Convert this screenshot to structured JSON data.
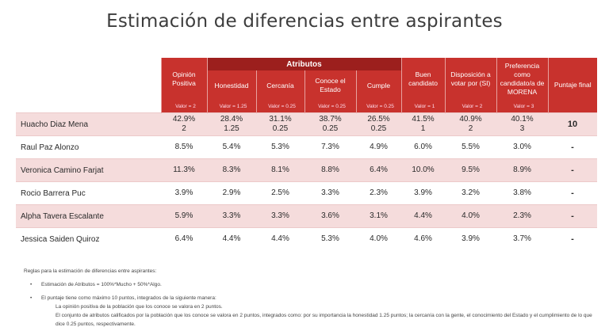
{
  "title": "Estimación de diferencias entre aspirantes",
  "table": {
    "group_header": "Atributos",
    "columns": [
      {
        "label": "Opinión Positiva",
        "value": "Valor = 2"
      },
      {
        "label": "Honestidad",
        "value": "Valor = 1.25"
      },
      {
        "label": "Cercanía",
        "value": "Valor = 0.25"
      },
      {
        "label": "Conoce el Estado",
        "value": "Valor = 0.25"
      },
      {
        "label": "Cumple",
        "value": "Valor = 0.25"
      },
      {
        "label": "Buen candidato",
        "value": "Valor = 1"
      },
      {
        "label": "Disposición a votar por (SI)",
        "value": "Valor = 2"
      },
      {
        "label": "Preferencia como candidato/a de MORENA",
        "value": "Valor = 3"
      },
      {
        "label": "Puntaje final",
        "value": ""
      }
    ],
    "rows": [
      {
        "name": "Huacho Diaz Mena",
        "cells": [
          "42.9%\n2",
          "28.4%\n1.25",
          "31.1%\n0.25",
          "38.7%\n0.25",
          "26.5%\n0.25",
          "41.5%\n1",
          "40.9%\n2",
          "40.1%\n3",
          "10"
        ]
      },
      {
        "name": "Raul Paz Alonzo",
        "cells": [
          "8.5%",
          "5.4%",
          "5.3%",
          "7.3%",
          "4.9%",
          "6.0%",
          "5.5%",
          "3.0%",
          "-"
        ]
      },
      {
        "name": "Veronica Camino Farjat",
        "cells": [
          "11.3%",
          "8.3%",
          "8.1%",
          "8.8%",
          "6.4%",
          "10.0%",
          "9.5%",
          "8.9%",
          "-"
        ]
      },
      {
        "name": "Rocio Barrera Puc",
        "cells": [
          "3.9%",
          "2.9%",
          "2.5%",
          "3.3%",
          "2.3%",
          "3.9%",
          "3.2%",
          "3.8%",
          "-"
        ]
      },
      {
        "name": "Alpha Tavera Escalante",
        "cells": [
          "5.9%",
          "3.3%",
          "3.3%",
          "3.6%",
          "3.1%",
          "4.4%",
          "4.0%",
          "2.3%",
          "-"
        ]
      },
      {
        "name": "Jessica Saiden Quiroz",
        "cells": [
          "6.4%",
          "4.4%",
          "4.4%",
          "5.3%",
          "4.0%",
          "4.6%",
          "3.9%",
          "3.7%",
          "-"
        ]
      }
    ]
  },
  "notes": {
    "heading": "Reglas para la estimación de diferencias entre aspirantes:",
    "bullet1": "Estimación de Atributos = 100%*Mucho + 50%*Algo.",
    "bullet2": "El puntaje tiene como máximo 10 puntos, integrados de la siguiente manera:",
    "sub1": "La opinión positiva de la población que los conoce se valora en 2 puntos.",
    "sub2": "El conjunto de atributos calificados por la población que los conoce se valora en 2 puntos, integrados como: por su importancia la honestidad 1.25 puntos; la cercanía con la gente, el conocimiento del Estado y el cumplimiento de lo que dice 0.25 puntos, respectivamente."
  },
  "colors": {
    "header_red": "#c8322d",
    "group_dark_red": "#9c1f1d",
    "row_shade": "#f5dcdc"
  }
}
